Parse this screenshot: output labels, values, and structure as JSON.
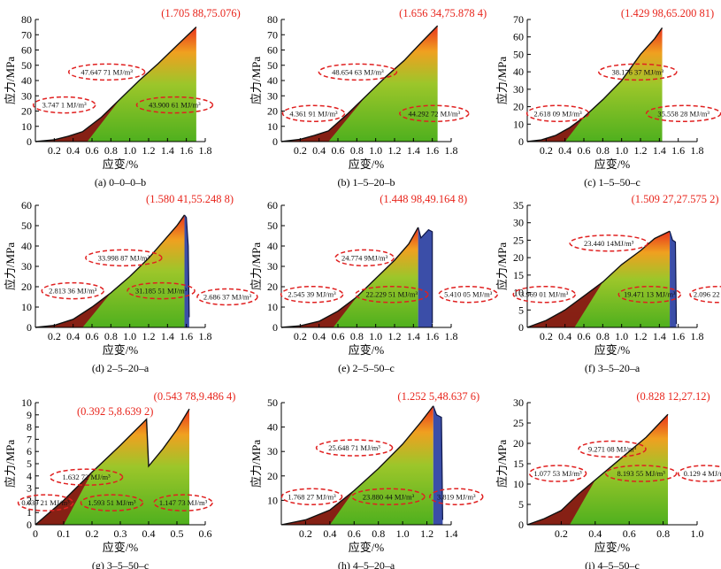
{
  "chart_data": [
    {
      "type": "area",
      "caption": "(a) 0–0–0–b",
      "xlabel": "应变/%",
      "ylabel": "应力/MPa",
      "xlim": [
        0,
        1.8
      ],
      "ylim": [
        0,
        80
      ],
      "xticks": [
        "0.2",
        "0.4",
        "0.6",
        "0.8",
        "1.0",
        "1.2",
        "1.4",
        "1.6",
        "1.8"
      ],
      "yticks": [
        "0",
        "10",
        "20",
        "30",
        "40",
        "50",
        "60",
        "70",
        "80"
      ],
      "curve": [
        [
          0,
          0
        ],
        [
          0.2,
          1.2
        ],
        [
          0.35,
          3.5
        ],
        [
          0.5,
          6.5
        ],
        [
          0.7,
          16
        ],
        [
          0.9,
          28
        ],
        [
          1.1,
          40
        ],
        [
          1.3,
          51
        ],
        [
          1.5,
          63
        ],
        [
          1.705,
          75.076
        ]
      ],
      "split_x": 0.55,
      "end_x": 1.705,
      "post_peak": [],
      "peak_label": "(1.705 88,75.076)",
      "annotations": [
        "47.647 71 MJ/m³",
        "3.747 1 MJ/m³",
        "43.900 61 MJ/m³"
      ]
    },
    {
      "type": "area",
      "caption": "(b) 1–5–20–b",
      "xlabel": "应变/%",
      "ylabel": "应力/MPa",
      "xlim": [
        0,
        1.8
      ],
      "ylim": [
        0,
        80
      ],
      "xticks": [
        "0.2",
        "0.4",
        "0.6",
        "0.8",
        "1.0",
        "1.2",
        "1.4",
        "1.6",
        "1.8"
      ],
      "yticks": [
        "0",
        "10",
        "20",
        "30",
        "40",
        "50",
        "60",
        "70",
        "80"
      ],
      "curve": [
        [
          0,
          0
        ],
        [
          0.2,
          1.5
        ],
        [
          0.35,
          4
        ],
        [
          0.5,
          7
        ],
        [
          0.7,
          18
        ],
        [
          0.9,
          30
        ],
        [
          1.1,
          42
        ],
        [
          1.3,
          53
        ],
        [
          1.5,
          66
        ],
        [
          1.656,
          75.878
        ]
      ],
      "split_x": 0.5,
      "end_x": 1.656,
      "post_peak": [],
      "peak_label": "(1.656 34,75.878 4)",
      "annotations": [
        "48.654 63 MJ/m³",
        "4.361 91 MJ/m³",
        "44.292 72 MJ/m³"
      ]
    },
    {
      "type": "area",
      "caption": "(c) 1–5–50–c",
      "xlabel": "应变/%",
      "ylabel": "应力/MPa",
      "xlim": [
        0,
        1.8
      ],
      "ylim": [
        0,
        70
      ],
      "xticks": [
        "0.2",
        "0.4",
        "0.6",
        "0.8",
        "1.0",
        "1.2",
        "1.4",
        "1.6",
        "1.8"
      ],
      "yticks": [
        "0",
        "10",
        "20",
        "30",
        "40",
        "50",
        "60",
        "70"
      ],
      "curve": [
        [
          0,
          0
        ],
        [
          0.15,
          1
        ],
        [
          0.3,
          3.5
        ],
        [
          0.45,
          8
        ],
        [
          0.6,
          14
        ],
        [
          0.8,
          24
        ],
        [
          1.0,
          35
        ],
        [
          1.2,
          50
        ],
        [
          1.35,
          59
        ],
        [
          1.43,
          65.2
        ]
      ],
      "split_x": 0.4,
      "end_x": 1.43,
      "post_peak": [],
      "peak_label": "(1.429 98,65.200 81)",
      "annotations": [
        "38.176 37 MJ/m³",
        "2.618 09 MJ/m³",
        "35.558 28 MJ/m³"
      ]
    },
    {
      "type": "area",
      "caption": "(d) 2–5–20–a",
      "xlabel": "应变/%",
      "ylabel": "应力/MPa",
      "xlim": [
        0,
        1.8
      ],
      "ylim": [
        0,
        60
      ],
      "xticks": [
        "0.2",
        "0.4",
        "0.6",
        "0.8",
        "1.0",
        "1.2",
        "1.4",
        "1.6",
        "1.8"
      ],
      "yticks": [
        "0",
        "10",
        "20",
        "30",
        "40",
        "50",
        "60"
      ],
      "curve": [
        [
          0,
          0
        ],
        [
          0.2,
          1
        ],
        [
          0.4,
          4
        ],
        [
          0.6,
          10
        ],
        [
          0.8,
          17
        ],
        [
          1.0,
          25
        ],
        [
          1.2,
          34
        ],
        [
          1.35,
          42
        ],
        [
          1.5,
          50
        ],
        [
          1.58,
          55.25
        ]
      ],
      "split_x": 0.5,
      "end_x": 1.58,
      "post_peak": [
        [
          1.6,
          54
        ],
        [
          1.62,
          40
        ],
        [
          1.63,
          5
        ]
      ],
      "peak_label": "(1.580 41,55.248 8)",
      "annotations": [
        "33.998 87 MJ/m³",
        "2.813 36 MJ/m³",
        "31.185 51 MJ/m³",
        "2.686 37 MJ/m³"
      ]
    },
    {
      "type": "area",
      "caption": "(e) 2–5–50–c",
      "xlabel": "应变/%",
      "ylabel": "应力/MPa",
      "xlim": [
        0,
        1.8
      ],
      "ylim": [
        0,
        60
      ],
      "xticks": [
        "0.2",
        "0.4",
        "0.6",
        "0.8",
        "1.0",
        "1.2",
        "1.4",
        "1.6",
        "1.8"
      ],
      "yticks": [
        "0",
        "10",
        "20",
        "30",
        "40",
        "50",
        "60"
      ],
      "curve": [
        [
          0,
          0
        ],
        [
          0.2,
          0.8
        ],
        [
          0.4,
          3
        ],
        [
          0.6,
          8
        ],
        [
          0.8,
          15
        ],
        [
          1.0,
          24
        ],
        [
          1.2,
          33
        ],
        [
          1.35,
          41
        ],
        [
          1.45,
          49.16
        ]
      ],
      "split_x": 0.55,
      "end_x": 1.45,
      "post_peak": [
        [
          1.48,
          44
        ],
        [
          1.52,
          46
        ],
        [
          1.56,
          48
        ],
        [
          1.6,
          47
        ],
        [
          1.6,
          2
        ]
      ],
      "peak_label": "(1.448 98,49.164 8)",
      "annotations": [
        "24.774 9MJ/m³",
        "2.545 39 MJ/m³",
        "22.229 51 MJ/m³",
        "5.410 05 MJ/m³"
      ]
    },
    {
      "type": "area",
      "caption": "(f) 3–5–20–a",
      "xlabel": "应变/%",
      "ylabel": "应力/MPa",
      "xlim": [
        0,
        1.8
      ],
      "ylim": [
        0,
        35
      ],
      "xticks": [
        "0.2",
        "0.4",
        "0.6",
        "0.8",
        "1.0",
        "1.2",
        "1.4",
        "1.6",
        "1.8"
      ],
      "yticks": [
        "0",
        "5",
        "10",
        "15",
        "20",
        "25",
        "30",
        "35"
      ],
      "curve": [
        [
          0,
          0
        ],
        [
          0.2,
          2
        ],
        [
          0.4,
          5
        ],
        [
          0.6,
          9
        ],
        [
          0.8,
          13
        ],
        [
          1.0,
          18
        ],
        [
          1.2,
          22
        ],
        [
          1.35,
          25.5
        ],
        [
          1.51,
          27.58
        ]
      ],
      "split_x": 0.5,
      "end_x": 1.51,
      "post_peak": [
        [
          1.54,
          25
        ],
        [
          1.57,
          24.5
        ],
        [
          1.58,
          1
        ]
      ],
      "peak_label": "(1.509 27,27.575 2)",
      "annotations": [
        "23.440 14MJ/m³",
        "3.969 01 MJ/m³",
        "19.471 13 MJ/m³",
        "2.096 22 MJ/m³"
      ]
    },
    {
      "type": "area",
      "caption": "(g) 3–5–50–c",
      "xlabel": "应变/%",
      "ylabel": "应力/MPa",
      "xlim": [
        0,
        0.6
      ],
      "ylim": [
        0,
        10
      ],
      "xticks": [
        "0",
        "0.1",
        "0.2",
        "0.3",
        "0.4",
        "0.5",
        "0.6"
      ],
      "yticks": [
        "0",
        "1",
        "2",
        "3",
        "4",
        "5",
        "6",
        "7",
        "8",
        "9",
        "10"
      ],
      "curve": [
        [
          0,
          0
        ],
        [
          0.1,
          2
        ],
        [
          0.2,
          4.3
        ],
        [
          0.3,
          6.5
        ],
        [
          0.3926,
          8.64
        ],
        [
          0.4,
          4.8
        ],
        [
          0.45,
          6.2
        ],
        [
          0.5,
          7.8
        ],
        [
          0.5438,
          9.486
        ]
      ],
      "split_x": 0.1,
      "end_x": 0.5438,
      "post_peak": [],
      "peak_label": "(0.543 78,9.486 4)",
      "peak_label_2": "(0.392 5,8.639 2)",
      "annotations": [
        "1.632 72 MJ/m³",
        "0.039 21 MJ/m³",
        "1.593 51 MJ/m³",
        "1.147 73 MJ/m³"
      ]
    },
    {
      "type": "area",
      "caption": "(h) 4–5–20–a",
      "xlabel": "应变/%",
      "ylabel": "应力/MPa",
      "xlim": [
        0,
        1.4
      ],
      "ylim": [
        0,
        50
      ],
      "xticks": [
        "0.2",
        "0.4",
        "0.6",
        "0.8",
        "1.0",
        "1.2",
        "1.4"
      ],
      "yticks": [
        "10",
        "20",
        "30",
        "40",
        "50"
      ],
      "curve": [
        [
          0,
          0
        ],
        [
          0.2,
          2
        ],
        [
          0.4,
          6
        ],
        [
          0.6,
          14
        ],
        [
          0.8,
          23
        ],
        [
          1.0,
          33
        ],
        [
          1.15,
          42
        ],
        [
          1.2525,
          48.64
        ]
      ],
      "split_x": 0.4,
      "end_x": 1.2525,
      "post_peak": [
        [
          1.28,
          45
        ],
        [
          1.32,
          44
        ],
        [
          1.33,
          2
        ]
      ],
      "peak_label": "(1.252 5,48.637 6)",
      "annotations": [
        "25.648 71 MJ/m³",
        "1.768 27 MJ/m³",
        "23.880 44 MJ/m³",
        "3.819 MJ/m³"
      ]
    },
    {
      "type": "area",
      "caption": "(i) 4–5–50–c",
      "xlabel": "应变/%",
      "ylabel": "应力/MPa",
      "xlim": [
        0,
        1.0
      ],
      "ylim": [
        0,
        30
      ],
      "xticks": [
        "0.2",
        "0.4",
        "0.6",
        "0.8",
        "1.0"
      ],
      "yticks": [
        "0",
        "5",
        "10",
        "15",
        "20",
        "25",
        "30"
      ],
      "curve": [
        [
          0,
          0
        ],
        [
          0.1,
          1.5
        ],
        [
          0.2,
          3.5
        ],
        [
          0.3,
          7.5
        ],
        [
          0.4,
          11
        ],
        [
          0.5,
          14.5
        ],
        [
          0.6,
          18
        ],
        [
          0.7,
          21.5
        ],
        [
          0.8281,
          27.12
        ]
      ],
      "split_x": 0.25,
      "end_x": 0.8281,
      "post_peak": [],
      "peak_label": "(0.828 12,27.12)",
      "annotations": [
        "9.271 08 MJ/m³",
        "1.077 53 MJ/m³",
        "8.193 55 MJ/m³",
        "0.129 4 MJ/m³"
      ]
    }
  ]
}
